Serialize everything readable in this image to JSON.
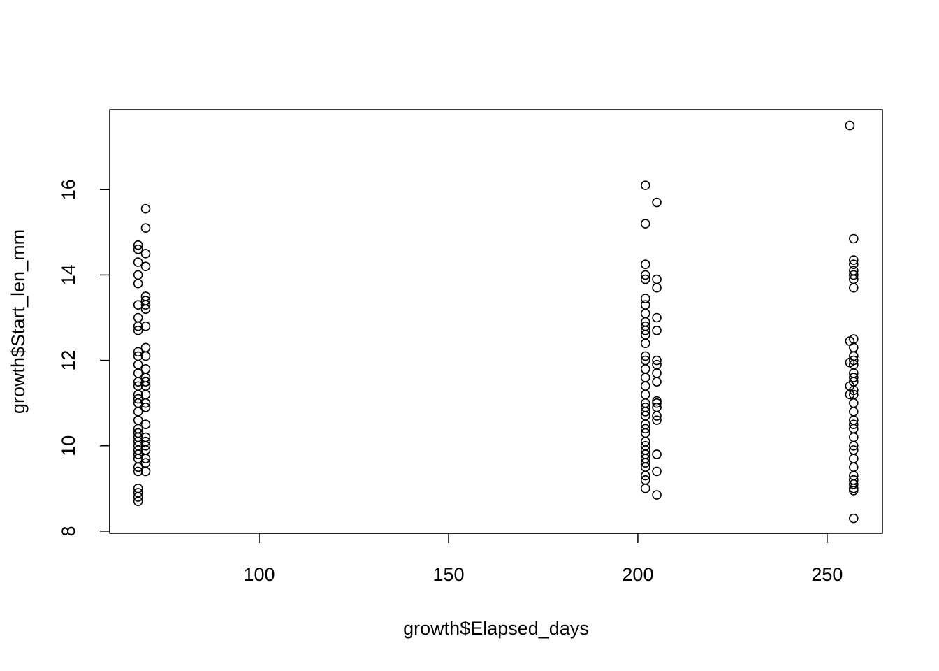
{
  "chart_data": {
    "type": "scatter",
    "x_label": "growth$Elapsed_days",
    "y_label": "growth$Start_len_mm",
    "xlim": [
      60.5,
      264.6
    ],
    "ylim": [
      7.95,
      17.87
    ],
    "xticks": [
      100,
      150,
      200,
      250
    ],
    "yticks": [
      8,
      10,
      12,
      14,
      16
    ],
    "color": "#000000",
    "x": [
      68,
      68,
      68,
      68,
      68,
      68,
      68,
      68,
      68,
      68,
      68,
      68,
      68,
      68,
      68,
      68,
      68,
      68,
      68,
      68,
      68,
      68,
      68,
      68,
      68,
      68,
      68,
      68,
      68,
      68,
      68,
      68,
      68,
      68,
      70,
      70,
      70,
      70,
      70,
      70,
      70,
      70,
      70,
      70,
      70,
      70,
      70,
      70,
      70,
      70,
      70,
      70,
      70,
      70,
      70,
      70,
      70,
      70,
      70,
      70,
      202,
      202,
      202,
      202,
      202,
      202,
      202,
      202,
      202,
      202,
      202,
      202,
      202,
      202,
      202,
      202,
      202,
      202,
      202,
      202,
      202,
      202,
      202,
      202,
      202,
      202,
      202,
      202,
      202,
      202,
      202,
      202,
      202,
      202,
      202,
      202,
      205,
      205,
      205,
      205,
      205,
      205,
      205,
      205,
      205,
      205,
      205,
      205,
      205,
      205,
      205,
      205,
      205,
      256,
      256,
      256,
      256,
      256,
      257,
      257,
      257,
      257,
      257,
      257,
      257,
      257,
      257,
      257,
      257,
      257,
      257,
      257,
      257,
      257,
      257,
      257,
      257,
      257,
      257,
      257,
      257,
      257,
      257,
      257,
      257,
      257,
      257,
      257,
      257,
      257,
      257
    ],
    "y": [
      14.7,
      14.6,
      14.3,
      14.0,
      13.8,
      13.3,
      13.0,
      12.8,
      12.7,
      12.2,
      12.1,
      11.9,
      11.7,
      11.5,
      11.4,
      11.2,
      11.1,
      11.0,
      10.8,
      10.6,
      10.4,
      10.3,
      10.2,
      10.1,
      10.0,
      9.9,
      9.8,
      9.7,
      9.5,
      9.4,
      9.0,
      8.9,
      8.8,
      8.7,
      15.55,
      15.1,
      14.5,
      14.2,
      13.5,
      13.4,
      13.3,
      13.2,
      12.8,
      12.3,
      12.1,
      11.8,
      11.6,
      11.5,
      11.4,
      11.2,
      11.0,
      10.9,
      10.5,
      10.2,
      10.1,
      10.0,
      9.9,
      9.7,
      9.6,
      9.4,
      16.1,
      15.2,
      14.25,
      14.0,
      13.9,
      13.45,
      13.3,
      13.1,
      12.9,
      12.8,
      12.7,
      12.6,
      12.4,
      12.1,
      12.0,
      11.8,
      11.6,
      11.4,
      11.2,
      11.0,
      10.9,
      10.8,
      10.7,
      10.5,
      10.4,
      10.3,
      10.1,
      10.0,
      9.9,
      9.8,
      9.7,
      9.6,
      9.5,
      9.3,
      9.2,
      9.0,
      15.7,
      13.9,
      13.7,
      13.0,
      12.7,
      12.0,
      11.9,
      11.7,
      11.5,
      11.05,
      11.0,
      10.9,
      10.7,
      10.6,
      9.8,
      9.4,
      8.85,
      17.5,
      12.45,
      11.95,
      11.4,
      11.2,
      14.85,
      14.35,
      14.25,
      14.1,
      14.0,
      13.9,
      13.7,
      12.5,
      12.3,
      12.1,
      12.0,
      11.9,
      11.7,
      11.6,
      11.5,
      11.3,
      11.2,
      11.0,
      10.8,
      10.6,
      10.5,
      10.4,
      10.2,
      10.0,
      9.9,
      9.7,
      9.5,
      9.3,
      9.2,
      9.1,
      9.0,
      8.95,
      8.3
    ]
  }
}
